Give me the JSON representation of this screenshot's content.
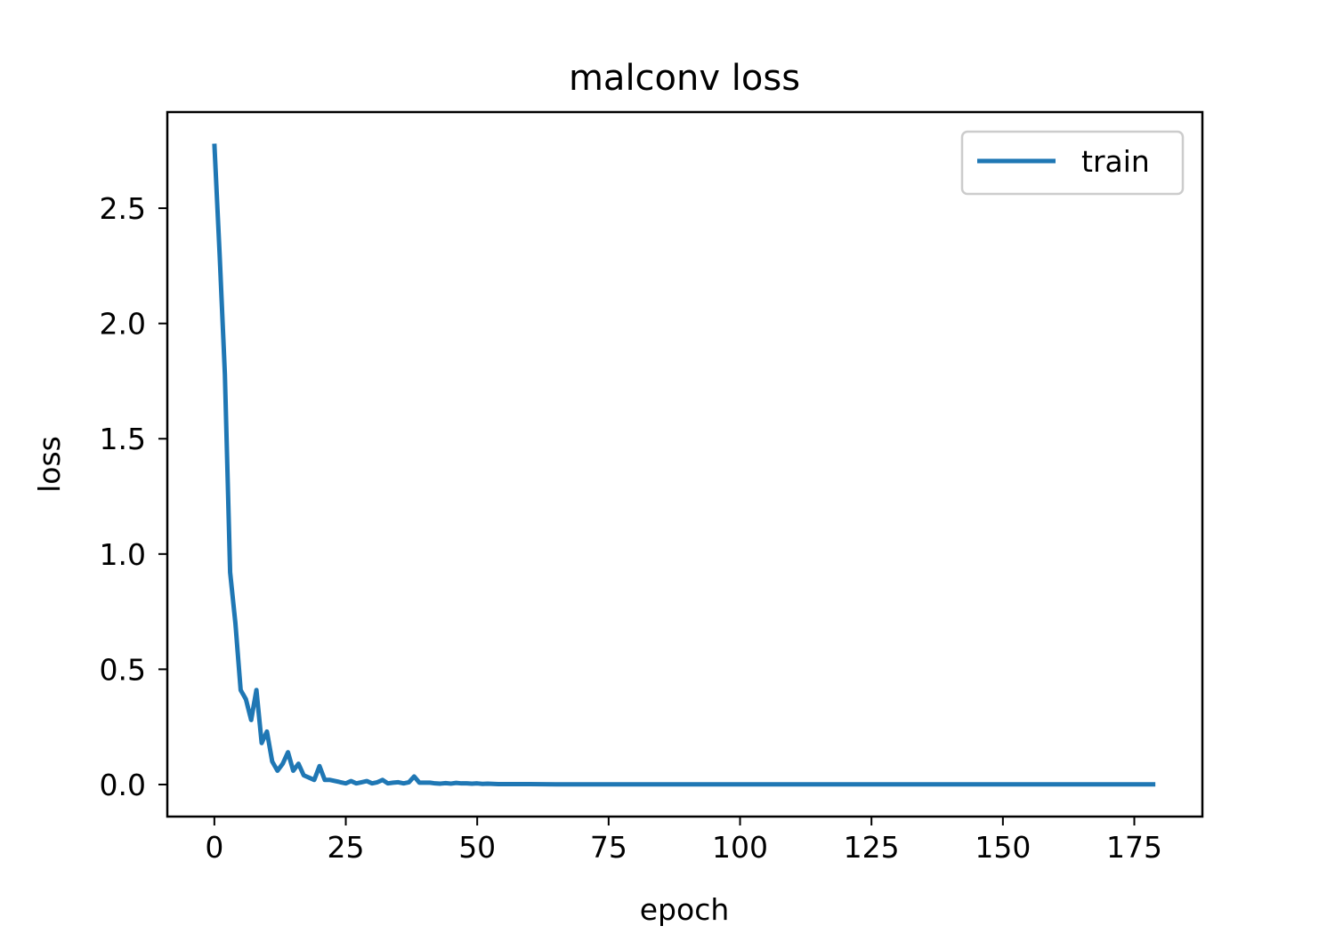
{
  "chart_data": {
    "type": "line",
    "title": "malconv loss",
    "xlabel": "epoch",
    "ylabel": "loss",
    "xlim": [
      -8.95,
      187.95
    ],
    "ylim": [
      -0.139,
      2.917
    ],
    "xticks": [
      0,
      25,
      50,
      75,
      100,
      125,
      150,
      175
    ],
    "xtick_labels": [
      "0",
      "25",
      "50",
      "75",
      "100",
      "125",
      "150",
      "175"
    ],
    "yticks": [
      0.0,
      0.5,
      1.0,
      1.5,
      2.0,
      2.5
    ],
    "ytick_labels": [
      "0.0",
      "0.5",
      "1.0",
      "1.5",
      "2.0",
      "2.5"
    ],
    "grid": false,
    "legend_position": "upper right",
    "series": [
      {
        "name": "train",
        "color": "#1f77b4",
        "x": [
          0,
          1,
          2,
          3,
          4,
          5,
          6,
          7,
          8,
          9,
          10,
          11,
          12,
          13,
          14,
          15,
          16,
          17,
          18,
          19,
          20,
          21,
          22,
          23,
          24,
          25,
          26,
          27,
          28,
          29,
          30,
          31,
          32,
          33,
          34,
          35,
          36,
          37,
          38,
          39,
          40,
          41,
          42,
          43,
          44,
          45,
          46,
          47,
          48,
          49,
          50,
          51,
          52,
          53,
          54,
          55,
          56,
          57,
          58,
          59,
          60,
          65,
          70,
          75,
          80,
          90,
          100,
          110,
          120,
          130,
          140,
          150,
          160,
          170,
          179
        ],
        "y": [
          2.78,
          2.3,
          1.78,
          0.92,
          0.7,
          0.41,
          0.37,
          0.28,
          0.41,
          0.18,
          0.23,
          0.1,
          0.06,
          0.09,
          0.14,
          0.06,
          0.09,
          0.04,
          0.03,
          0.02,
          0.08,
          0.02,
          0.02,
          0.015,
          0.01,
          0.005,
          0.015,
          0.005,
          0.01,
          0.015,
          0.005,
          0.01,
          0.02,
          0.005,
          0.008,
          0.01,
          0.005,
          0.01,
          0.035,
          0.008,
          0.008,
          0.008,
          0.005,
          0.004,
          0.006,
          0.004,
          0.007,
          0.005,
          0.005,
          0.004,
          0.005,
          0.003,
          0.004,
          0.003,
          0.002,
          0.002,
          0.002,
          0.002,
          0.002,
          0.002,
          0.002,
          0.001,
          0.001,
          0.001,
          0.001,
          0.001,
          0.001,
          0.001,
          0.001,
          0.001,
          0.001,
          0.001,
          0.001,
          0.001,
          0.001
        ]
      }
    ]
  }
}
